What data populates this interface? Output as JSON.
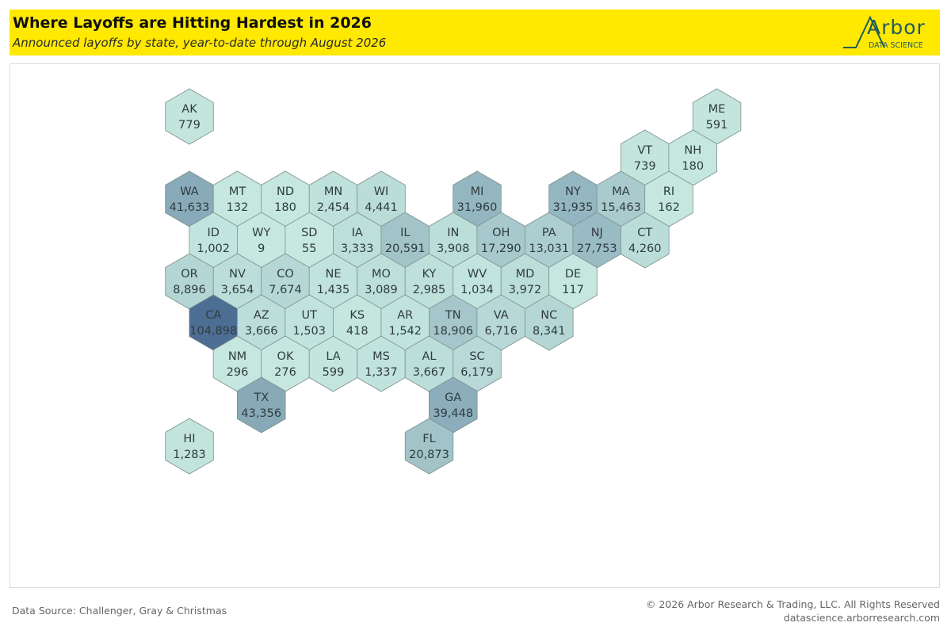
{
  "header": {
    "title": "Where Layoffs are Hitting Hardest in 2026",
    "subtitle": "Announced layoffs by state, year-to-date through August 2026"
  },
  "logo": {
    "name": "Arbor",
    "tagline": "DATA SCIENCE"
  },
  "colors": {
    "header_background": "#ffe900",
    "hex_low": "#c6e8e0",
    "hex_high": "#4d6e93",
    "hex_stroke": "#7d8f8c",
    "logo": "#1f5c5c"
  },
  "chart_data": {
    "type": "hex-tile-map",
    "measure": "Announced layoffs",
    "states": [
      {
        "state": "AK",
        "label": "779",
        "value": 779
      },
      {
        "state": "ME",
        "label": "591",
        "value": 591
      },
      {
        "state": "VT",
        "label": "739",
        "value": 739
      },
      {
        "state": "NH",
        "label": "180",
        "value": 180
      },
      {
        "state": "WA",
        "label": "41,633",
        "value": 41633
      },
      {
        "state": "MT",
        "label": "132",
        "value": 132
      },
      {
        "state": "ND",
        "label": "180",
        "value": 180
      },
      {
        "state": "MN",
        "label": "2,454",
        "value": 2454
      },
      {
        "state": "WI",
        "label": "4,441",
        "value": 4441
      },
      {
        "state": "MI",
        "label": "31,960",
        "value": 31960
      },
      {
        "state": "NY",
        "label": "31,935",
        "value": 31935
      },
      {
        "state": "MA",
        "label": "15,463",
        "value": 15463
      },
      {
        "state": "RI",
        "label": "162",
        "value": 162
      },
      {
        "state": "ID",
        "label": "1,002",
        "value": 1002
      },
      {
        "state": "WY",
        "label": "9",
        "value": 9
      },
      {
        "state": "SD",
        "label": "55",
        "value": 55
      },
      {
        "state": "IA",
        "label": "3,333",
        "value": 3333
      },
      {
        "state": "IL",
        "label": "20,591",
        "value": 20591
      },
      {
        "state": "IN",
        "label": "3,908",
        "value": 3908
      },
      {
        "state": "OH",
        "label": "17,290",
        "value": 17290
      },
      {
        "state": "PA",
        "label": "13,031",
        "value": 13031
      },
      {
        "state": "NJ",
        "label": "27,753",
        "value": 27753
      },
      {
        "state": "CT",
        "label": "4,260",
        "value": 4260
      },
      {
        "state": "OR",
        "label": "8,896",
        "value": 8896
      },
      {
        "state": "NV",
        "label": "3,654",
        "value": 3654
      },
      {
        "state": "CO",
        "label": "7,674",
        "value": 7674
      },
      {
        "state": "NE",
        "label": "1,435",
        "value": 1435
      },
      {
        "state": "MO",
        "label": "3,089",
        "value": 3089
      },
      {
        "state": "KY",
        "label": "2,985",
        "value": 2985
      },
      {
        "state": "WV",
        "label": "1,034",
        "value": 1034
      },
      {
        "state": "MD",
        "label": "3,972",
        "value": 3972
      },
      {
        "state": "DE",
        "label": "117",
        "value": 117
      },
      {
        "state": "CA",
        "label": "104,898",
        "value": 104898
      },
      {
        "state": "AZ",
        "label": "3,666",
        "value": 3666
      },
      {
        "state": "UT",
        "label": "1,503",
        "value": 1503
      },
      {
        "state": "KS",
        "label": "418",
        "value": 418
      },
      {
        "state": "AR",
        "label": "1,542",
        "value": 1542
      },
      {
        "state": "TN",
        "label": "18,906",
        "value": 18906
      },
      {
        "state": "VA",
        "label": "6,716",
        "value": 6716
      },
      {
        "state": "NC",
        "label": "8,341",
        "value": 8341
      },
      {
        "state": "NM",
        "label": "296",
        "value": 296
      },
      {
        "state": "OK",
        "label": "276",
        "value": 276
      },
      {
        "state": "LA",
        "label": "599",
        "value": 599
      },
      {
        "state": "MS",
        "label": "1,337",
        "value": 1337
      },
      {
        "state": "AL",
        "label": "3,667",
        "value": 3667
      },
      {
        "state": "SC",
        "label": "6,179",
        "value": 6179
      },
      {
        "state": "TX",
        "label": "43,356",
        "value": 43356
      },
      {
        "state": "GA",
        "label": "39,448",
        "value": 39448
      },
      {
        "state": "HI",
        "label": "1,283",
        "value": 1283
      },
      {
        "state": "FL",
        "label": "20,873",
        "value": 20873
      }
    ]
  },
  "footer": {
    "source": "Data Source: Challenger, Gray & Christmas",
    "copyright": "© 2026 Arbor Research & Trading, LLC. All Rights Reserved",
    "url": "datascience.arborresearch.com"
  }
}
